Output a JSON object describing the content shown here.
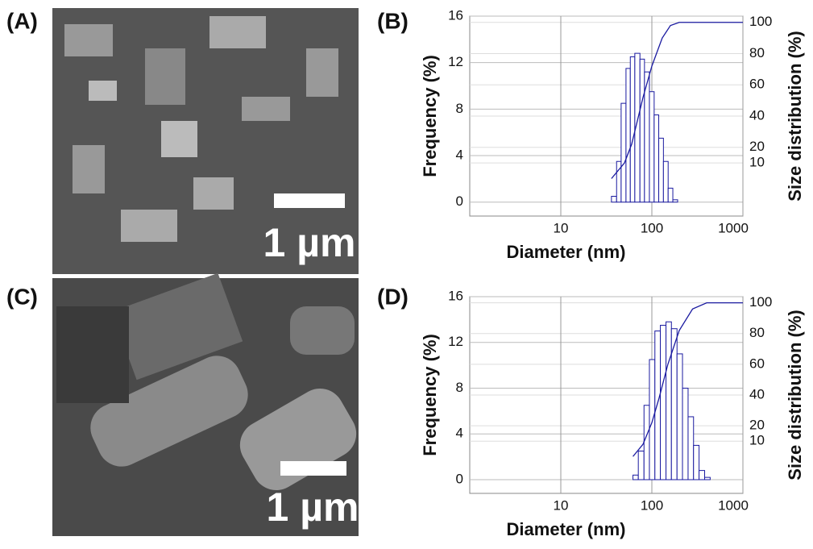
{
  "panel_labels": [
    "(A)",
    "(B)",
    "(C)",
    "(D)"
  ],
  "scale_bars": [
    "1 µm",
    "1 µm"
  ],
  "chart_data": [
    {
      "type": "histogram",
      "xlabel": "Diameter (nm)",
      "ylabel": "Frequency (%)",
      "y2label": "Size distribution (%)",
      "xscale": "log",
      "grid": true,
      "color": "#1a1aa0",
      "bins": [
        36,
        41,
        46,
        52,
        58,
        65,
        74,
        83,
        94,
        106,
        119,
        134,
        151,
        170,
        192
      ],
      "counts": [
        0.5,
        3.5,
        8.5,
        11.5,
        12.5,
        12.8,
        12.3,
        11.2,
        9.5,
        7.5,
        5.5,
        3.5,
        1.2,
        0.2
      ],
      "cumulative": {
        "axis": "y2",
        "color": "#1a1aa0",
        "x": [
          36,
          50,
          60,
          70,
          80,
          100,
          130,
          160,
          200,
          1000
        ],
        "values": [
          0,
          10,
          22,
          38,
          52,
          72,
          90,
          98,
          100,
          100
        ]
      },
      "xlim": [
        1,
        1000
      ],
      "xticks": [
        10,
        100,
        1000
      ],
      "ylim": [
        -1.2,
        16
      ],
      "yticks": [
        0,
        4,
        8,
        12,
        16
      ],
      "y2lim": [
        -24,
        104
      ],
      "y2ticks": [
        10,
        20,
        40,
        60,
        80,
        100
      ]
    },
    {
      "type": "histogram",
      "xlabel": "Diameter (nm)",
      "ylabel": "Frequency (%)",
      "y2label": "Size distribution (%)",
      "xscale": "log",
      "grid": true,
      "color": "#1a1aa0",
      "bins": [
        62,
        71,
        82,
        94,
        108,
        124,
        143,
        164,
        189,
        217,
        250,
        287,
        330,
        380,
        437
      ],
      "counts": [
        0.4,
        2.5,
        6.5,
        10.5,
        13,
        13.5,
        13.8,
        13.2,
        11,
        8,
        5.5,
        3,
        0.8,
        0.2
      ],
      "cumulative": {
        "axis": "y2",
        "color": "#1a1aa0",
        "x": [
          62,
          80,
          100,
          120,
          150,
          200,
          280,
          400,
          1000
        ],
        "values": [
          0,
          8,
          22,
          38,
          60,
          82,
          96,
          100,
          100
        ]
      },
      "xlim": [
        1,
        1000
      ],
      "xticks": [
        10,
        100,
        1000
      ],
      "ylim": [
        -1.2,
        16
      ],
      "yticks": [
        0,
        4,
        8,
        12,
        16
      ],
      "y2lim": [
        -24,
        104
      ],
      "y2ticks": [
        10,
        20,
        40,
        60,
        80,
        100
      ]
    }
  ]
}
